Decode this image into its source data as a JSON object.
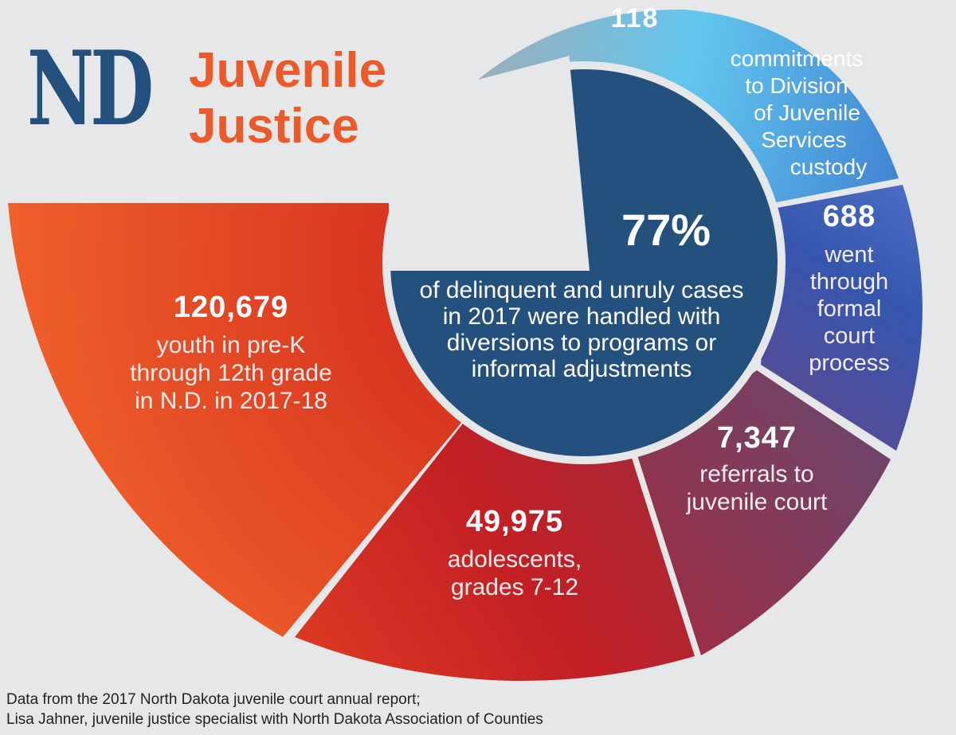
{
  "header": {
    "title_short": "ND",
    "title_line1": "Juvenile",
    "title_line2": "Justice"
  },
  "footer": {
    "line1": "Data from the 2017 North Dakota juvenile court annual report;",
    "line2": "Lisa Jahner, juvenile justice specialist with North Dakota Association of Counties"
  },
  "colors": {
    "navy": "#24507e",
    "orange": "#ea5a2b",
    "background": "#e6e7e9",
    "label": "#ffffff",
    "label_soft": "#f3e6e6"
  },
  "chart_data": {
    "type": "pie",
    "title": "ND Juvenile Justice",
    "segments": [
      {
        "value": "120,679",
        "label": [
          "youth in pre-K",
          "through 12th grade",
          "in N.D. in 2017-18"
        ],
        "color": "#ea5a2b"
      },
      {
        "value": "49,975",
        "label": [
          "adolescents,",
          "grades 7-12"
        ],
        "color": "#c42a26"
      },
      {
        "value": "7,347",
        "label": [
          "referrals to",
          "juvenile court"
        ],
        "color": "#8c3c5c"
      },
      {
        "value": "688",
        "label": [
          "went",
          "through",
          "formal",
          "court",
          "process"
        ],
        "color": "#4456a8"
      },
      {
        "value": "118",
        "label": [
          "commitments",
          "to Division",
          "of Juvenile",
          "Services",
          "custody"
        ],
        "color": "#4fa0dc"
      }
    ],
    "center": {
      "value": "77%",
      "label": [
        "of delinquent and unruly cases",
        "in 2017 were handled with",
        "diversions to programs or",
        "informal adjustments"
      ],
      "color": "#24507e"
    }
  }
}
